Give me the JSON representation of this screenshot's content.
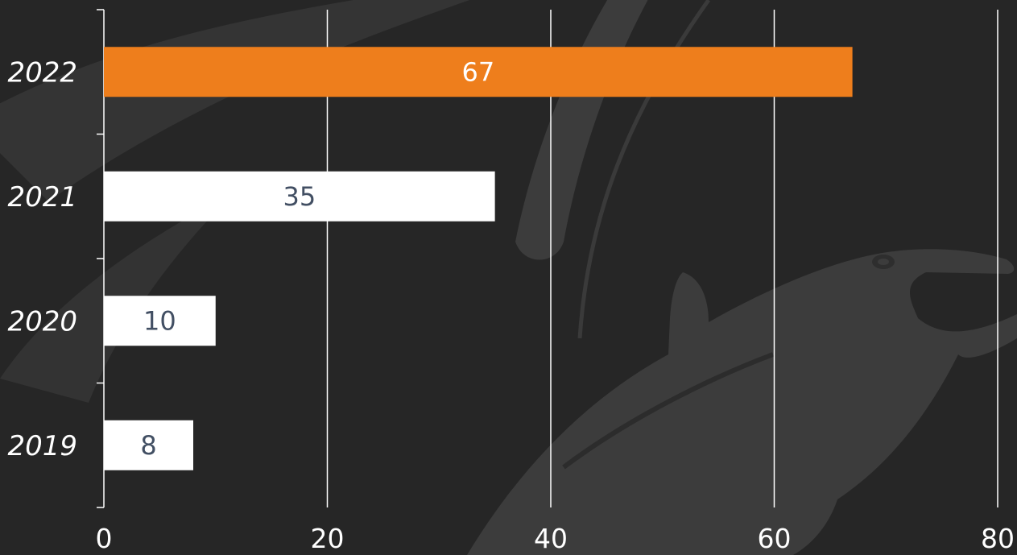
{
  "colors": {
    "background": "#262626",
    "watermark": "#3a3a3a",
    "highlight_bar": "#ee7e1c",
    "default_bar": "#ffffff",
    "label_on_highlight": "#ffffff",
    "label_on_default": "#424f63",
    "axis_text": "#ffffff",
    "grid": "#ffffff"
  },
  "background_watermark": "dolphin-silhouette",
  "chart_data": {
    "type": "bar",
    "orientation": "horizontal",
    "categories": [
      "2022",
      "2021",
      "2020",
      "2019"
    ],
    "values": [
      67,
      35,
      10,
      8
    ],
    "highlight_category": "2022",
    "xlim": [
      0,
      80
    ],
    "xticks": [
      "0",
      "20",
      "40",
      "60",
      "80"
    ],
    "data_labels": [
      "67",
      "35",
      "10",
      "8"
    ],
    "grid": "vertical",
    "title": "",
    "xlabel": "",
    "ylabel": ""
  }
}
